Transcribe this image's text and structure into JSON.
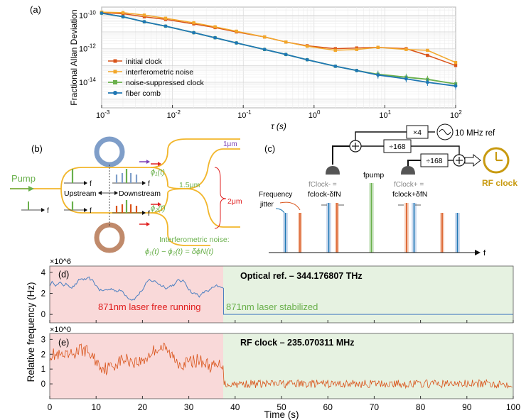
{
  "figure": {
    "panel_labels": {
      "a": "(a)",
      "b": "(b)",
      "c": "(c)",
      "d": "(d)",
      "e": "(e)"
    }
  },
  "colors": {
    "initial": "#d95319",
    "interf": "#f2a72b",
    "suppressed": "#6ab04c",
    "comb": "#1f77b4",
    "red_bg": "#f9d9d9",
    "green_bg": "#e6f2e1",
    "waveguide": "#f2b62b",
    "ring_blue": "#7f9ec9",
    "ring_brown": "#c08a6b",
    "clock_gold": "#c89a10"
  },
  "chart_data": [
    {
      "type": "line",
      "title": "",
      "xlabel": "τ (s)",
      "ylabel": "Fractional Allan Deviation",
      "xscale": "log",
      "yscale": "log",
      "xlim": [
        0.001,
        100
      ],
      "ylim": [
        3e-16,
        3e-10
      ],
      "xticks": [
        "10^-3",
        "10^-2",
        "10^-1",
        "10^0",
        "10^1",
        "10^2"
      ],
      "yticks": [
        "10^-10",
        "10^-12",
        "10^-14"
      ],
      "legend": [
        "initial clock",
        "interferometric noise",
        "noise-suppressed clock",
        "fiber comb"
      ],
      "series": [
        {
          "name": "initial clock",
          "x": [
            0.001,
            0.002,
            0.004,
            0.008,
            0.02,
            0.04,
            0.08,
            0.2,
            0.4,
            0.8,
            2,
            4,
            8,
            20,
            40,
            100
          ],
          "y": [
            1.4e-10,
            1.2e-10,
            8e-11,
            5.5e-11,
            3e-11,
            1.8e-11,
            1e-11,
            5e-12,
            2.5e-12,
            1.5e-12,
            1e-12,
            1.1e-12,
            1.2e-12,
            1e-12,
            4e-13,
            1e-13
          ]
        },
        {
          "name": "interferometric noise",
          "x": [
            0.001,
            0.002,
            0.004,
            0.008,
            0.02,
            0.04,
            0.08,
            0.2,
            0.4,
            0.8,
            2,
            4,
            8,
            20,
            40,
            100
          ],
          "y": [
            1.5e-10,
            1.4e-10,
            1e-10,
            6.5e-11,
            3.5e-11,
            2e-11,
            1.1e-11,
            5e-12,
            2.5e-12,
            1.4e-12,
            8e-13,
            9e-13,
            1.2e-12,
            9e-13,
            8e-13,
            1.5e-13
          ]
        },
        {
          "name": "noise-suppressed clock",
          "x": [
            0.001,
            0.002,
            0.004,
            0.008,
            0.02,
            0.04,
            0.08,
            0.2,
            0.4,
            0.8,
            2,
            4,
            8,
            20,
            40,
            100
          ],
          "y": [
            1.3e-10,
            8e-11,
            4e-11,
            2.2e-11,
            9e-12,
            4.5e-12,
            2.2e-12,
            9e-13,
            4.5e-13,
            2.2e-13,
            9e-14,
            5e-14,
            3e-14,
            2e-14,
            1.5e-14,
            8e-15
          ]
        },
        {
          "name": "fiber comb",
          "x": [
            0.001,
            0.002,
            0.004,
            0.008,
            0.02,
            0.04,
            0.08,
            0.2,
            0.4,
            0.8,
            2,
            4,
            8,
            20,
            40,
            100
          ],
          "y": [
            1.3e-10,
            8e-11,
            4e-11,
            2.2e-11,
            9e-12,
            4.5e-12,
            2.2e-12,
            9e-13,
            4.5e-13,
            2.2e-13,
            9e-14,
            5e-14,
            2.7e-14,
            1.6e-14,
            1e-14,
            6e-15
          ]
        }
      ]
    },
    {
      "type": "line",
      "title": "Optical ref. – 344.176807 THz",
      "xlabel": "Time (s)",
      "ylabel": "Relative frequency (Hz)",
      "multiplier": "×10^6",
      "xlim": [
        0,
        100
      ],
      "ylim": [
        -0.8,
        4.6
      ],
      "yticks": [
        0,
        2,
        4
      ],
      "event_time": 37.5,
      "annotation_free": "871nm laser free running",
      "annotation_locked": "871nm laser stabilized",
      "series": [
        {
          "name": "optical reference",
          "mean_free": 2.6,
          "mean_locked": 0.0
        }
      ]
    },
    {
      "type": "line",
      "title": "RF clock – 235.070311 MHz",
      "xlabel": "Time (s)",
      "ylabel": "Relative frequency (Hz)",
      "multiplier": "×10^0",
      "xlim": [
        0,
        100
      ],
      "ylim": [
        -1.0,
        3.4
      ],
      "yticks": [
        0,
        1,
        2,
        3
      ],
      "xticks": [
        0,
        10,
        20,
        30,
        40,
        50,
        60,
        70,
        80,
        90,
        100
      ],
      "event_time": 37.5,
      "series": [
        {
          "name": "RF clock",
          "mean_free": 1.7,
          "mean_locked": 0.0
        }
      ]
    }
  ],
  "panel_b": {
    "pump": "Pump",
    "upstream": "Upstream",
    "downstream": "Downstream",
    "phi1": "ϕ₁(t)",
    "phi2": "ϕ₂(t)",
    "l1": "1μm",
    "l15": "1.5μm",
    "l2": "2μm",
    "f": "f",
    "noise_title": "Interferometric noise:",
    "noise_eq": "ϕ₁(t) − ϕ₂(t) = δϕN(t)"
  },
  "panel_c": {
    "x4": "×4",
    "div1": "÷168",
    "div2": "÷168",
    "ref": "10 MHz ref",
    "rf_clock": "RF clock",
    "fclock_minus_gray": "fClock- =",
    "fclock_minus": "fclock-δfN",
    "fpump": "fpump",
    "fclock_plus_gray": "fClock+ =",
    "fclock_plus": "fclock+δfN",
    "jitter1": "Frequency",
    "jitter2": "jitter",
    "f": "f"
  }
}
